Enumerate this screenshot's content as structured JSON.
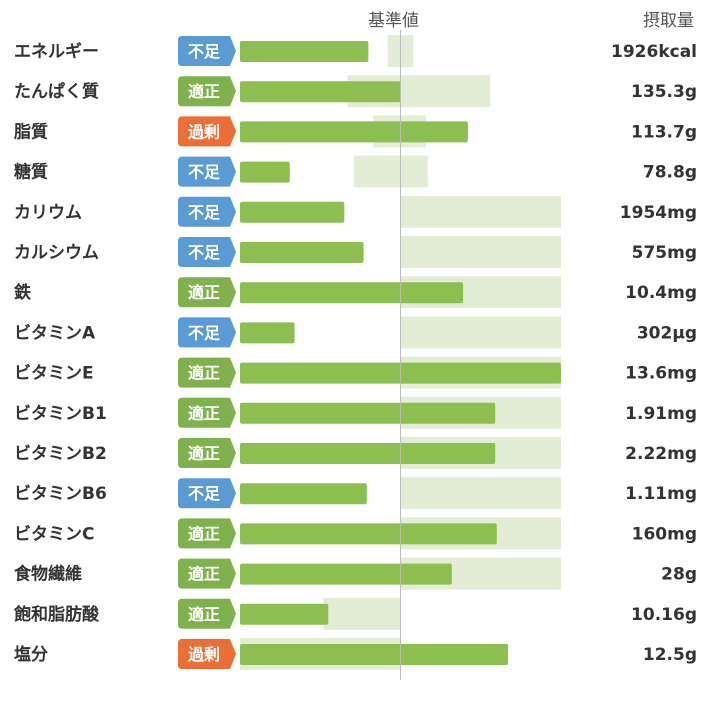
{
  "header": {
    "reference_label": "基準値",
    "intake_label": "摂取量"
  },
  "status_colors": {
    "不足": "#5b9bd5",
    "適正": "#7fb24c",
    "過剰": "#ec6e35"
  },
  "colors": {
    "bar": "#8cbf4f",
    "range": "#e3edd6",
    "ref_line": "#bbbbbb"
  },
  "chart_data": {
    "type": "bar",
    "orientation": "horizontal",
    "reference_line": "基準値",
    "bar_scale": "intake as percent of the reference value (基準値 = 100)",
    "xlim": [
      -100,
      100
    ],
    "categories": [
      "エネルギー",
      "たんぱく質",
      "脂質",
      "糖質",
      "カリウム",
      "カルシウム",
      "鉄",
      "ビタミンA",
      "ビタミンE",
      "ビタミンB1",
      "ビタミンB2",
      "ビタミンB6",
      "ビタミンC",
      "食物繊維",
      "飽和脂肪酸",
      "塩分"
    ],
    "status": [
      "不足",
      "適正",
      "過剰",
      "不足",
      "不足",
      "不足",
      "適正",
      "不足",
      "適正",
      "適正",
      "適正",
      "不足",
      "適正",
      "適正",
      "適正",
      "過剰"
    ],
    "values": [
      -20,
      0,
      42,
      -69,
      -35,
      -23,
      39,
      -66,
      100,
      59,
      59,
      -21,
      60,
      32,
      -45,
      67
    ],
    "ranges": [
      [
        -8,
        8
      ],
      [
        -33,
        56
      ],
      [
        -17,
        16
      ],
      [
        -29,
        17
      ],
      [
        0,
        100
      ],
      [
        0,
        100
      ],
      [
        0,
        100
      ],
      [
        0,
        100
      ],
      [
        0,
        100
      ],
      [
        0,
        100
      ],
      [
        0,
        100
      ],
      [
        0,
        100
      ],
      [
        0,
        100
      ],
      [
        0,
        100
      ],
      [
        -48,
        0
      ],
      [
        -100,
        0
      ]
    ],
    "intake_labels": [
      "1926kcal",
      "135.3g",
      "113.7g",
      "78.8g",
      "1954mg",
      "575mg",
      "10.4mg",
      "302µg",
      "13.6mg",
      "1.91mg",
      "2.22mg",
      "1.11mg",
      "160mg",
      "28g",
      "10.16g",
      "12.5g"
    ]
  }
}
